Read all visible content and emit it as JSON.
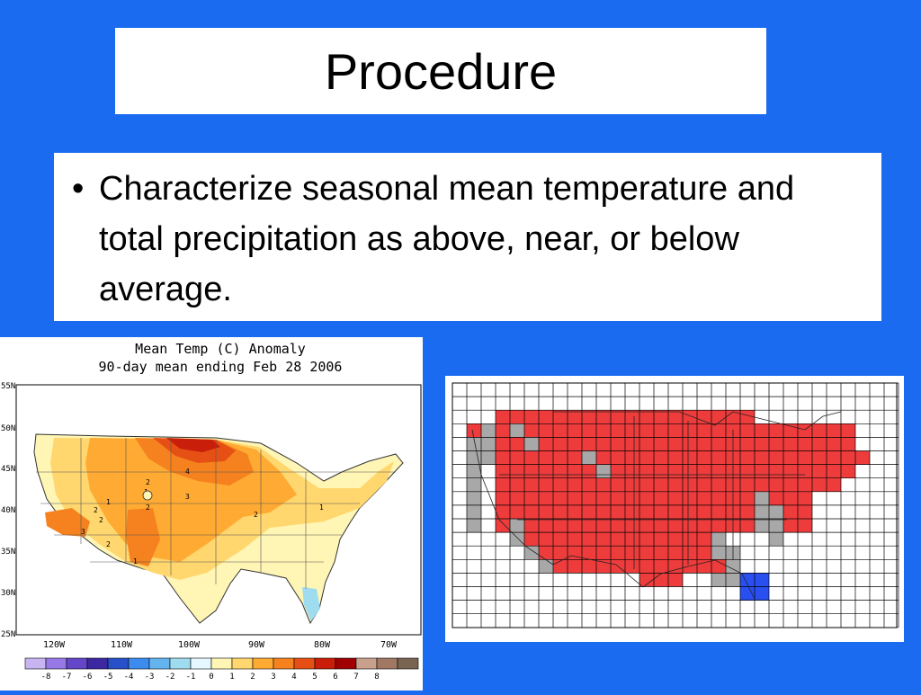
{
  "slide": {
    "title": "Procedure",
    "bullet": "Characterize seasonal mean temperature and total precipitation as above, near, or below average."
  },
  "temp_map": {
    "title_line1": "Mean Temp (C) Anomaly",
    "title_line2": "90-day mean ending Feb 28 2006",
    "lat_labels": [
      "55N",
      "50N",
      "45N",
      "40N",
      "35N",
      "30N",
      "25N"
    ],
    "lon_labels": [
      "120W",
      "110W",
      "100W",
      "90W",
      "80W",
      "70W"
    ],
    "contour_labels": [
      "1",
      "2",
      "3",
      "4",
      "2",
      "2",
      "2",
      "1",
      "2",
      "3",
      "1",
      "2",
      "1"
    ],
    "legend": {
      "labels": [
        "-8",
        "-7",
        "-6",
        "-5",
        "-4",
        "-3",
        "-2",
        "-1",
        "0",
        "1",
        "2",
        "3",
        "4",
        "5",
        "6",
        "7",
        "8"
      ],
      "colors": [
        "#c8b4f0",
        "#9678e6",
        "#6446c8",
        "#3c28a0",
        "#2850c8",
        "#3c8cf0",
        "#64b4f0",
        "#a0dcf0",
        "#e6f8ff",
        "#fff5b4",
        "#ffd76e",
        "#ffaa32",
        "#f5821e",
        "#e65014",
        "#c81e0a",
        "#a00000",
        "#c8a08c",
        "#a07864",
        "#786450"
      ]
    }
  },
  "grid_map": {
    "colors": {
      "above": "#ee3c3c",
      "near": "#a8a8a8",
      "below": "#2a4ff0"
    }
  }
}
